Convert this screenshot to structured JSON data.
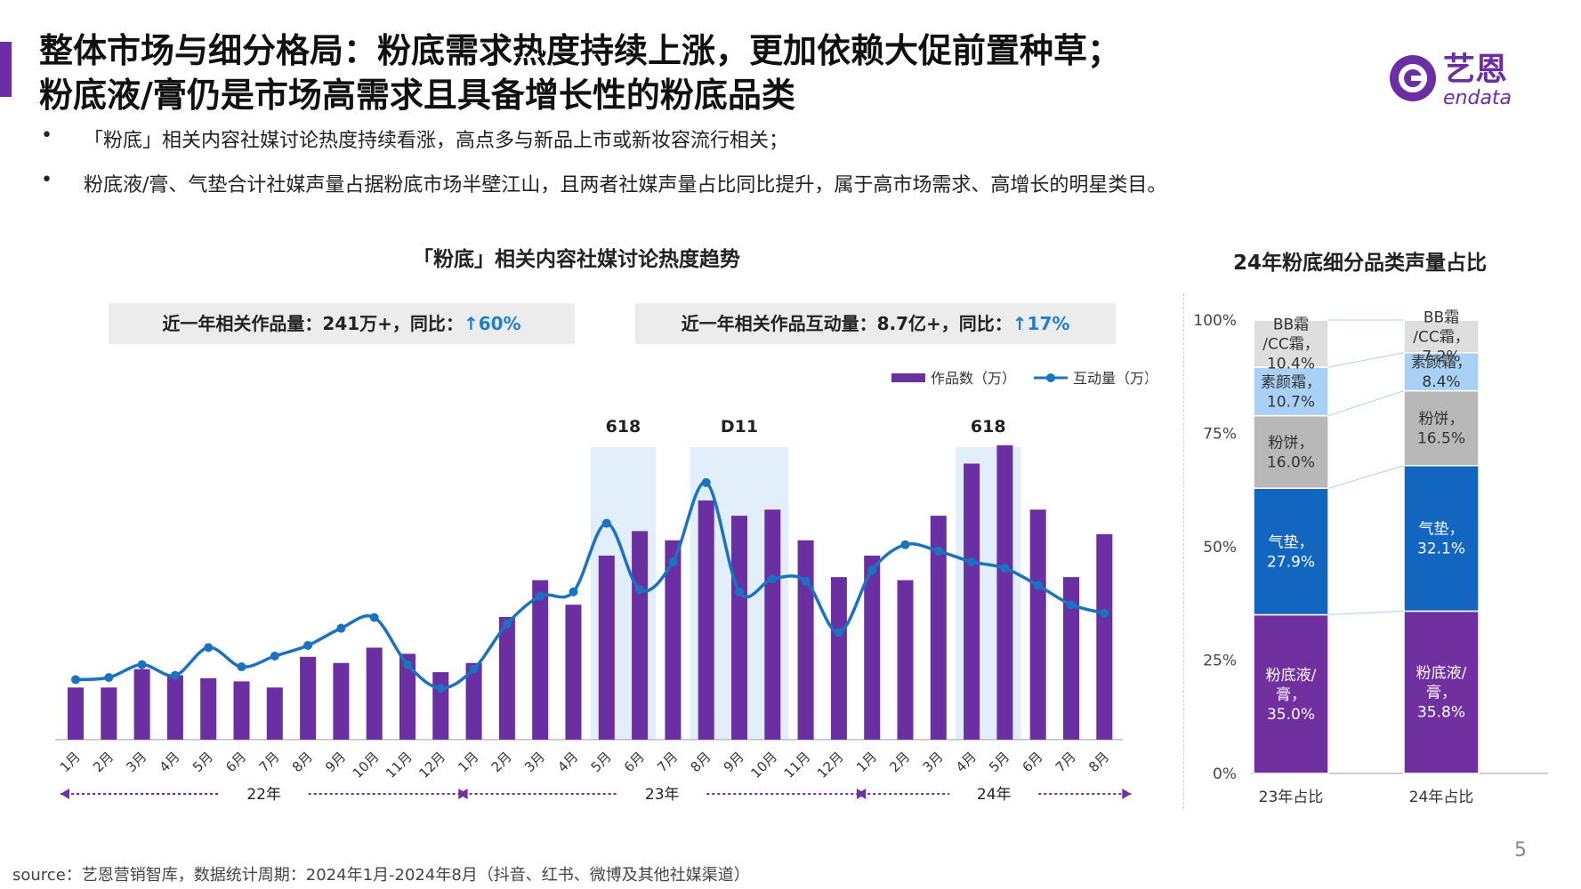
{
  "page": {
    "title_line1": "整体市场与细分格局：粉底需求热度持续上涨，更加依赖大促前置种草；",
    "title_line2": "粉底液/膏仍是市场高需求且具备增长性的粉底品类",
    "brand_name": "艺恩",
    "brand_sub": "endata",
    "accent_color": "#6b2fa3",
    "bullets": [
      "「粉底」相关内容社媒讨论热度持续看涨，高点多与新品上市或新妆容流行相关；",
      "粉底液/膏、气垫合计社媒声量占据粉底市场半壁江山，且两者社媒声量占比同比提升，属于高市场需求、高增长的明星类目。"
    ],
    "bullet_symbol": "•",
    "source": "source：艺恩营销智库，数据统计周期：2024年1月-2024年8月（抖音、红书、微博及其他社媒渠道）",
    "page_number": "5"
  },
  "stats": [
    {
      "prefix": "近一年相关作品量：241万+，同比：",
      "highlight": "↑60%"
    },
    {
      "prefix": "近一年相关作品互动量：8.7亿+，同比：",
      "highlight": "↑17%"
    }
  ],
  "chart_data": [
    {
      "type": "bar+line",
      "title": "「粉底」相关内容社媒讨论热度趋势",
      "categories": [
        "1月",
        "2月",
        "3月",
        "4月",
        "5月",
        "6月",
        "7月",
        "8月",
        "9月",
        "10月",
        "11月",
        "12月",
        "1月",
        "2月",
        "3月",
        "4月",
        "5月",
        "6月",
        "7月",
        "8月",
        "9月",
        "10月",
        "11月",
        "12月",
        "1月",
        "2月",
        "3月",
        "4月",
        "5月",
        "6月",
        "7月",
        "8月"
      ],
      "year_groups": [
        {
          "label": "22年",
          "start": 0,
          "end": 11
        },
        {
          "label": "23年",
          "start": 12,
          "end": 23
        },
        {
          "label": "24年",
          "start": 24,
          "end": 31
        }
      ],
      "series": [
        {
          "name": "作品数（万）",
          "type": "bar",
          "color": "#6a2fa0",
          "values": [
            17,
            17,
            23,
            21,
            20,
            19,
            17,
            27,
            25,
            30,
            28,
            22,
            25,
            40,
            52,
            44,
            60,
            68,
            65,
            78,
            73,
            75,
            65,
            53,
            60,
            52,
            73,
            90,
            96,
            75,
            53,
            67
          ]
        },
        {
          "name": "互动量（万）",
          "type": "line",
          "color": "#1b72c0",
          "values": [
            28,
            29,
            35,
            30,
            43,
            34,
            39,
            44,
            52,
            57,
            35,
            24,
            33,
            54,
            67,
            69,
            101,
            70,
            83,
            120,
            69,
            75,
            74,
            50,
            79,
            91,
            88,
            83,
            80,
            72,
            63,
            59
          ]
        }
      ],
      "highlights": [
        {
          "label": "618",
          "start": 16,
          "end": 17
        },
        {
          "label": "D11",
          "start": 19,
          "end": 21
        },
        {
          "label": "618",
          "start": 27,
          "end": 28
        }
      ],
      "highlight_color": "#e2eef9",
      "legend_position": "top-right"
    },
    {
      "type": "stacked-bar",
      "title": "24年粉底细分品类声量占比",
      "categories": [
        "23年占比",
        "24年占比"
      ],
      "y_ticks": [
        "0%",
        "25%",
        "50%",
        "75%",
        "100%"
      ],
      "ylim": [
        0,
        100
      ],
      "series": [
        {
          "name": "粉底液/膏",
          "color": "#7030a0",
          "text_color": "#ffffff",
          "values": [
            35.0,
            35.8
          ],
          "labels": [
            "粉底液/膏，35.0%",
            "粉底液/膏，35.8%"
          ]
        },
        {
          "name": "气垫",
          "color": "#1366c0",
          "text_color": "#ffffff",
          "values": [
            27.9,
            32.1
          ],
          "labels": [
            "气垫，27.9%",
            "气垫，32.1%"
          ]
        },
        {
          "name": "粉饼",
          "color": "#b8b8b8",
          "text_color": "#333333",
          "values": [
            16.0,
            16.5
          ],
          "labels": [
            "粉饼，16.0%",
            "粉饼，16.5%"
          ]
        },
        {
          "name": "素颜霜",
          "color": "#a9d0f5",
          "text_color": "#333333",
          "values": [
            10.7,
            8.4
          ],
          "labels": [
            "素颜霜，10.7%",
            "素颜霜，8.4%"
          ]
        },
        {
          "name": "BB霜/CC霜",
          "color": "#dedede",
          "text_color": "#333333",
          "values": [
            10.4,
            7.2
          ],
          "labels": [
            "BB霜/CC霜，10.4%",
            "BB霜/CC霜，7.2%"
          ]
        }
      ]
    }
  ]
}
